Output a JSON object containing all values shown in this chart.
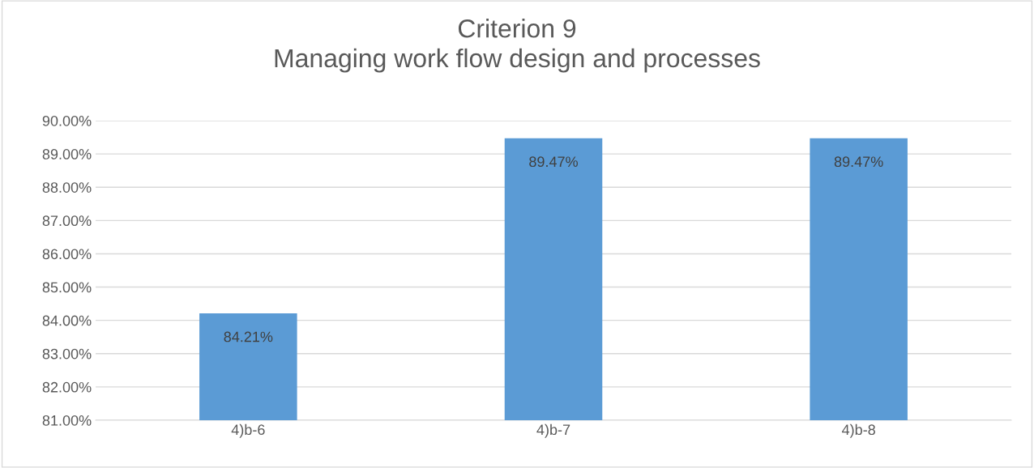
{
  "chart_data": {
    "type": "bar",
    "title": "Criterion 9\nManaging work flow design and processes",
    "categories": [
      "4)b-6",
      "4)b-7",
      "4)b-8"
    ],
    "values": [
      84.21,
      89.47,
      89.47
    ],
    "value_labels": [
      "84.21%",
      "89.47%",
      "89.47%"
    ],
    "color": "#5b9bd5",
    "ylim": [
      81,
      90
    ],
    "yticks": [
      {
        "value": 81,
        "label": "81.00%"
      },
      {
        "value": 82,
        "label": "82.00%"
      },
      {
        "value": 83,
        "label": "83.00%"
      },
      {
        "value": 84,
        "label": "84.00%"
      },
      {
        "value": 85,
        "label": "85.00%"
      },
      {
        "value": 86,
        "label": "86.00%"
      },
      {
        "value": 87,
        "label": "87.00%"
      },
      {
        "value": 88,
        "label": "88.00%"
      },
      {
        "value": 89,
        "label": "89.00%"
      },
      {
        "value": 90,
        "label": "90.00%"
      }
    ],
    "grid": "y"
  }
}
